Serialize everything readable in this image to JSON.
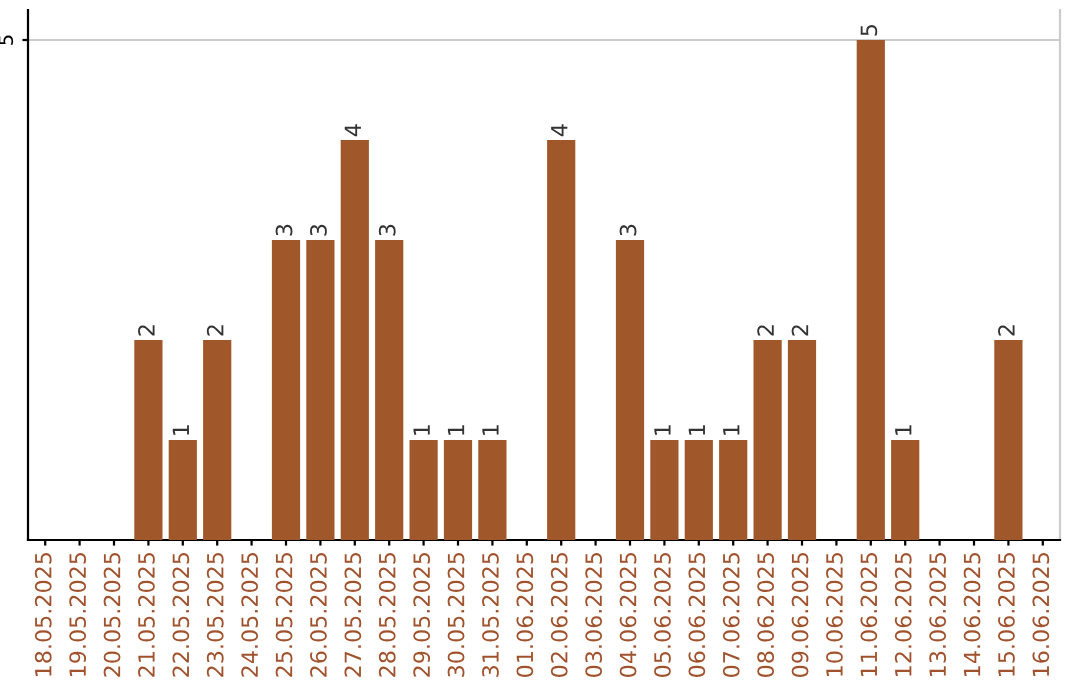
{
  "chart_data": {
    "type": "bar",
    "categories": [
      "18.05.2025",
      "19.05.2025",
      "20.05.2025",
      "21.05.2025",
      "22.05.2025",
      "23.05.2025",
      "24.05.2025",
      "25.05.2025",
      "26.05.2025",
      "27.05.2025",
      "28.05.2025",
      "29.05.2025",
      "30.05.2025",
      "31.05.2025",
      "01.06.2025",
      "02.06.2025",
      "03.06.2025",
      "04.06.2025",
      "05.06.2025",
      "06.06.2025",
      "07.06.2025",
      "08.06.2025",
      "09.06.2025",
      "10.06.2025",
      "11.06.2025",
      "12.06.2025",
      "13.06.2025",
      "14.06.2025",
      "15.06.2025",
      "16.06.2025"
    ],
    "values": [
      0,
      0,
      0,
      2,
      1,
      2,
      0,
      3,
      3,
      4,
      3,
      1,
      1,
      1,
      0,
      4,
      0,
      3,
      1,
      1,
      1,
      2,
      2,
      0,
      5,
      1,
      0,
      0,
      2,
      0
    ],
    "value_labels": [
      null,
      null,
      null,
      "2",
      "1",
      "2",
      null,
      "3",
      "3",
      "4",
      "3",
      "1",
      "1",
      "1",
      null,
      "4",
      null,
      "3",
      "1",
      "1",
      "1",
      "2",
      "2",
      null,
      "5",
      "1",
      null,
      null,
      "2",
      null
    ],
    "color": "#a0582a",
    "ylim": [
      0,
      5.3
    ],
    "yticks": [
      5
    ],
    "grid": "y",
    "legend": false
  }
}
